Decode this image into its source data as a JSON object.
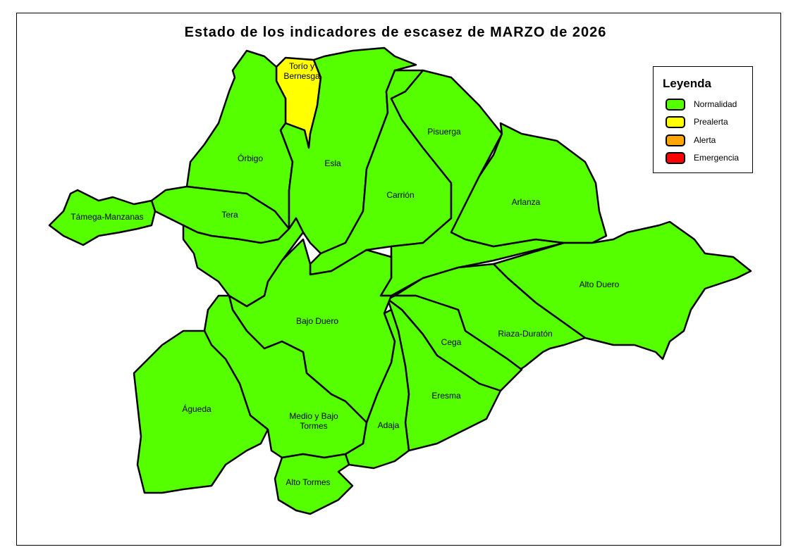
{
  "title": "Estado de los indicadores de escasez de MARZO de 2026",
  "colors": {
    "Normalidad": "#55ff00",
    "Prealerta": "#ffff00",
    "Alerta": "#ffa500",
    "Emergencia": "#ff0000"
  },
  "legend": {
    "title": "Leyenda",
    "items": [
      {
        "label": "Normalidad",
        "color": "#55ff00"
      },
      {
        "label": "Prealerta",
        "color": "#ffff00"
      },
      {
        "label": "Alerta",
        "color": "#ffa500"
      },
      {
        "label": "Emergencia",
        "color": "#ff0000"
      }
    ]
  },
  "basins": [
    {
      "name": "Torío y Bernesga",
      "label_lines": [
        "Torío y",
        "Bernesga"
      ],
      "status": "Prealerta"
    },
    {
      "name": "Órbigo",
      "label_lines": [
        "Órbigo"
      ],
      "status": "Normalidad"
    },
    {
      "name": "Esla",
      "label_lines": [
        "Esla"
      ],
      "status": "Normalidad"
    },
    {
      "name": "Carrión",
      "label_lines": [
        "Carrión"
      ],
      "status": "Normalidad"
    },
    {
      "name": "Pisuerga",
      "label_lines": [
        "Pisuerga"
      ],
      "status": "Normalidad"
    },
    {
      "name": "Arlanza",
      "label_lines": [
        "Arlanza"
      ],
      "status": "Normalidad"
    },
    {
      "name": "Alto Duero",
      "label_lines": [
        "Alto Duero"
      ],
      "status": "Normalidad"
    },
    {
      "name": "Riaza-Duratón",
      "label_lines": [
        "Riaza-Duratón"
      ],
      "status": "Normalidad"
    },
    {
      "name": "Cega",
      "label_lines": [
        "Cega"
      ],
      "status": "Normalidad"
    },
    {
      "name": "Eresma",
      "label_lines": [
        "Eresma"
      ],
      "status": "Normalidad"
    },
    {
      "name": "Adaja",
      "label_lines": [
        "Adaja"
      ],
      "status": "Normalidad"
    },
    {
      "name": "Bajo Duero",
      "label_lines": [
        "Bajo Duero"
      ],
      "status": "Normalidad"
    },
    {
      "name": "Tera",
      "label_lines": [
        "Tera"
      ],
      "status": "Normalidad"
    },
    {
      "name": "Támega-Manzanas",
      "label_lines": [
        "Támega-Manzanas"
      ],
      "status": "Normalidad"
    },
    {
      "name": "",
      "label_lines": [],
      "status": "Normalidad"
    },
    {
      "name": "Medio y Bajo Tormes",
      "label_lines": [
        "Medio y Bajo",
        "Tormes"
      ],
      "status": "Normalidad"
    },
    {
      "name": "Águeda",
      "label_lines": [
        "Águeda"
      ],
      "status": "Normalidad"
    },
    {
      "name": "Alto Tormes",
      "label_lines": [
        "Alto Tormes"
      ],
      "status": "Normalidad"
    }
  ]
}
